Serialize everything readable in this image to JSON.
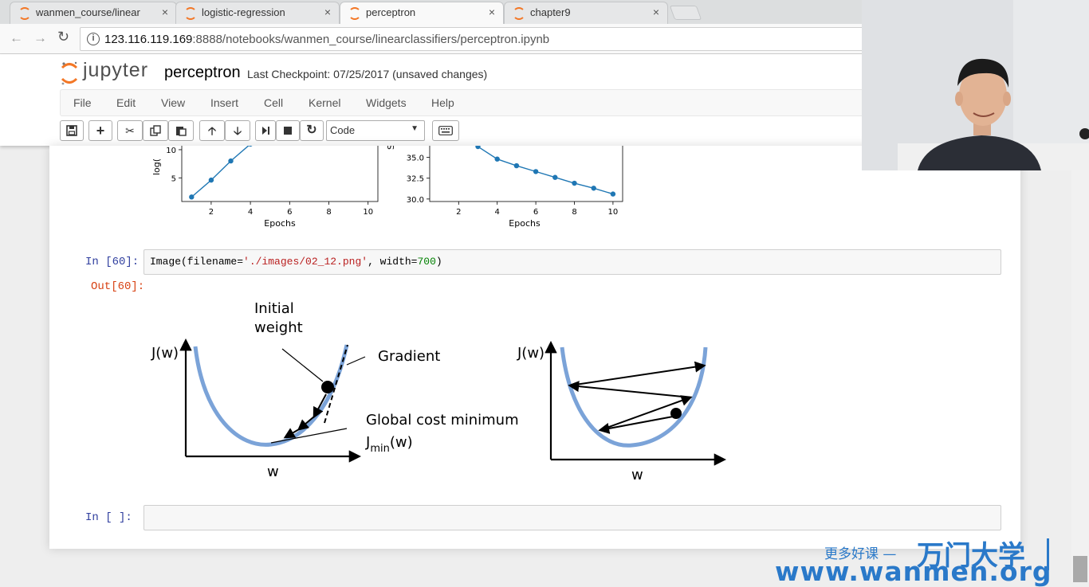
{
  "browser": {
    "tabs": [
      {
        "label": "wanmen_course/linear",
        "active": false
      },
      {
        "label": "logistic-regression",
        "active": false
      },
      {
        "label": "perceptron",
        "active": true
      },
      {
        "label": "chapter9",
        "active": false
      }
    ],
    "close_glyph": "×",
    "url_host": "123.116.119.169",
    "url_rest": ":8888/notebooks/wanmen_course/linearclassifiers/perceptron.ipynb"
  },
  "jupyter": {
    "logo_text": "jupyter",
    "notebook_name": "perceptron",
    "checkpoint": "Last Checkpoint: 07/25/2017 (unsaved changes)",
    "menu": [
      "File",
      "Edit",
      "View",
      "Insert",
      "Cell",
      "Kernel",
      "Widgets",
      "Help"
    ],
    "cell_type": "Code"
  },
  "cells": {
    "prev_left_ylabel": "log(",
    "prev_right_ylabel": "S",
    "in60_prompt": "In  [60]:",
    "out60_prompt": "Out[60]:",
    "in60_code_pre": "Image(filename=",
    "in60_code_str": "'./images/02_12.png'",
    "in60_code_mid": ", width=",
    "in60_code_num": "700",
    "in60_code_post": ")",
    "empty_prompt": "In  [ ]:"
  },
  "chart_data": [
    {
      "type": "line",
      "xlabel": "Epochs",
      "ylabel": "log(",
      "x": [
        1,
        2,
        3,
        4
      ],
      "y": [
        1.6,
        4.6,
        8.0,
        11.0
      ],
      "xticks": [
        2,
        4,
        6,
        8,
        10
      ],
      "yticks": [
        5,
        10
      ],
      "xlim": [
        0.5,
        10.5
      ],
      "ylim": [
        0.8,
        10.7
      ],
      "color": "#1f77b4"
    },
    {
      "type": "line",
      "xlabel": "Epochs",
      "ylabel": "S",
      "x": [
        3,
        4,
        5,
        6,
        7,
        8,
        9,
        10
      ],
      "y": [
        36.3,
        34.8,
        34.0,
        33.3,
        32.6,
        31.9,
        31.3,
        30.6
      ],
      "xticks": [
        2,
        4,
        6,
        8,
        10
      ],
      "yticks": [
        "30.0",
        "32.5",
        "35.0"
      ],
      "xlim": [
        0.5,
        10.5
      ],
      "ylim": [
        29.7,
        36.4
      ],
      "color": "#1f77b4"
    }
  ],
  "figure_labels": {
    "left_ylabel": "J(w)",
    "initial_weight_1": "Initial",
    "initial_weight_2": "weight",
    "gradient": "Gradient",
    "global_min": "Global cost minimum",
    "jmin_J": "J",
    "jmin_sub": "min",
    "jmin_w": "(w)",
    "left_xlabel": "w",
    "right_ylabel": "J(w)",
    "right_xlabel": "w"
  },
  "watermark": {
    "slogan": "更多好课 —",
    "brand": "万门大学",
    "url": "www.wanmen.org"
  }
}
